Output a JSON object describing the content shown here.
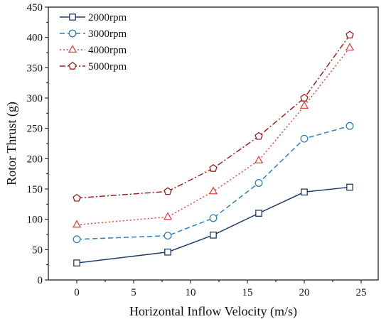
{
  "chart_data": {
    "type": "line",
    "xlabel": "Horizontal Inflow Velocity (m/s)",
    "ylabel": "Rotor Thrust (g)",
    "xlim": [
      -2.5,
      26.5
    ],
    "ylim": [
      0,
      450
    ],
    "xticks": [
      0,
      5,
      10,
      15,
      20,
      25
    ],
    "yticks": [
      0,
      50,
      100,
      150,
      200,
      250,
      300,
      350,
      400,
      450
    ],
    "grid": false,
    "legend_position": "top-left",
    "x": [
      0,
      8,
      12,
      16,
      20,
      24
    ],
    "series": [
      {
        "name": "2000rpm",
        "values": [
          28,
          46,
          74,
          110,
          145,
          153
        ],
        "color": "#1f3a6b",
        "dash": "solid",
        "marker": "square"
      },
      {
        "name": "3000rpm",
        "values": [
          67,
          73,
          102,
          160,
          233,
          254
        ],
        "color": "#2e7fc2",
        "dash": "dash",
        "marker": "circle"
      },
      {
        "name": "4000rpm",
        "values": [
          91,
          104,
          146,
          197,
          287,
          383
        ],
        "color": "#e8453c",
        "dash": "dot",
        "marker": "triangle"
      },
      {
        "name": "5000rpm",
        "values": [
          135,
          146,
          184,
          237,
          300,
          404
        ],
        "color": "#a41f1f",
        "dash": "dashdot",
        "marker": "pentagon"
      }
    ]
  }
}
